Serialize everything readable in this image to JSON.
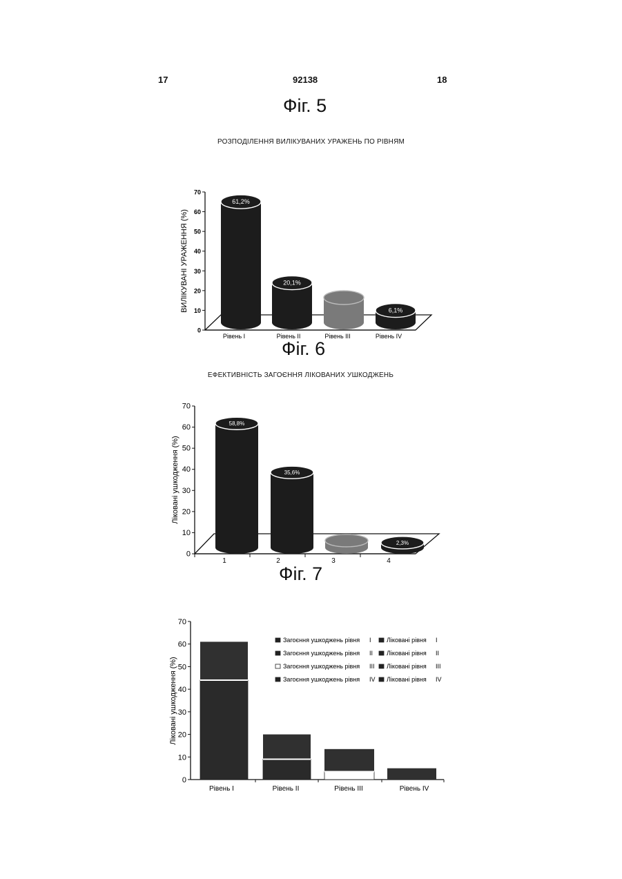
{
  "page": {
    "left_number": "17",
    "center_number": "92138",
    "right_number": "18"
  },
  "figures": {
    "fig5": "Фіг. 5",
    "fig6": "Фіг. 6",
    "fig7": "Фіг. 7"
  },
  "colors": {
    "bar_dark": "#1c1c1c",
    "bar_grey": "#7a7a7a",
    "axis": "#111111"
  },
  "chart_data": [
    {
      "type": "bar",
      "style": "3d-cylinder",
      "title": "РОЗПОДІЛЕННЯ ВИЛІКУВАНИХ УРАЖЕНЬ ПО РІВНЯМ",
      "ylabel": "ВИЛІКУВАНІ УРАЖЕННЯ (%)",
      "xlabel": "",
      "ylim": [
        0,
        70
      ],
      "yticks": [
        "0",
        "10",
        "20",
        "30",
        "40",
        "50",
        "60",
        "70"
      ],
      "categories": [
        "Рівень I",
        "Рівень II",
        "Рівень III",
        "Рівень IV"
      ],
      "values": [
        61.2,
        20.1,
        12.6,
        6.1
      ],
      "data_labels": [
        "61,2%",
        "20,1%",
        "",
        "6,1%"
      ],
      "grid": false
    },
    {
      "type": "bar",
      "style": "3d-cylinder",
      "title": "ЕФЕКТИВНІСТЬ ЗАГОЄННЯ ЛІКОВАНИХ УШКОДЖЕНЬ",
      "ylabel": "Ліковані ушкодження (%)",
      "xlabel": "",
      "ylim": [
        0,
        70
      ],
      "yticks": [
        "0",
        "10",
        "20",
        "30",
        "40",
        "50",
        "60",
        "70"
      ],
      "categories": [
        "1",
        "2",
        "3",
        "4"
      ],
      "values": [
        58.8,
        35.6,
        3.3,
        2.3
      ],
      "data_labels": [
        "58,8%",
        "35,6%",
        "",
        "2,3%"
      ],
      "grid": false
    },
    {
      "type": "bar",
      "style": "stacked",
      "title": "",
      "ylabel": "Ліковані ушкодження (%)",
      "xlabel": "",
      "ylim": [
        0,
        70
      ],
      "yticks": [
        "0",
        "10",
        "20",
        "30",
        "40",
        "50",
        "60",
        "70"
      ],
      "categories": [
        "Рівень I",
        "Рівень II",
        "Рівень III",
        "Рівень IV"
      ],
      "series": [
        {
          "name": "Загоєння ушкоджень рівня I",
          "values": [
            44,
            9,
            3.5,
            0
          ]
        },
        {
          "name": "Ліковані рівня I",
          "values": [
            61,
            20,
            13.5,
            5
          ]
        }
      ],
      "legend_items": [
        {
          "label": "Загоєння ушкоджень рівня",
          "level": "I"
        },
        {
          "label": "Загоєння ушкоджень рівня",
          "level": "II"
        },
        {
          "label": "Загоєння ушкоджень рівня",
          "level": "III"
        },
        {
          "label": "Загоєння ушкоджень рівня",
          "level": "IV"
        },
        {
          "label": "Ліковані рівня",
          "level": "I"
        },
        {
          "label": "Ліковані рівня",
          "level": "II"
        },
        {
          "label": "Ліковані рівня",
          "level": "III"
        },
        {
          "label": "Ліковані рівня",
          "level": "IV"
        }
      ],
      "legend_position": "top-right",
      "grid": false
    }
  ]
}
